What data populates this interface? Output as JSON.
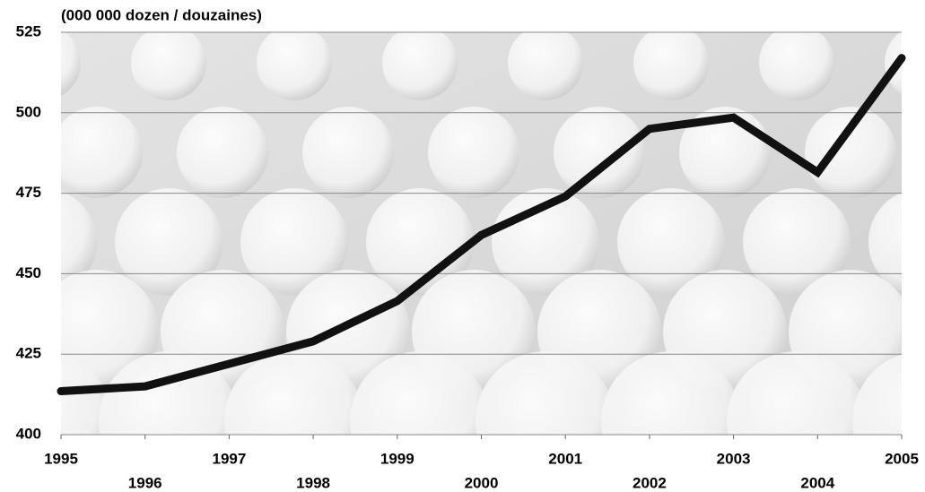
{
  "chart_data": {
    "type": "line",
    "y_axis_label": "(000 000 dozen / douzaines)",
    "x": [
      1995,
      1996,
      1997,
      1998,
      1999,
      2000,
      2001,
      2002,
      2003,
      2004,
      2005
    ],
    "series": [
      {
        "color": "#111111",
        "values": [
          413.5,
          415,
          422,
          429,
          441.5,
          462,
          474,
          495,
          498.5,
          481.5,
          517
        ]
      }
    ],
    "xlim": [
      1995,
      2005
    ],
    "xticks": [
      1995,
      1996,
      1997,
      1998,
      1999,
      2000,
      2001,
      2002,
      2003,
      2004,
      2005
    ],
    "ylim": [
      400,
      525
    ],
    "yticks": [
      400,
      425,
      450,
      475,
      500,
      525
    ],
    "grid": true
  }
}
